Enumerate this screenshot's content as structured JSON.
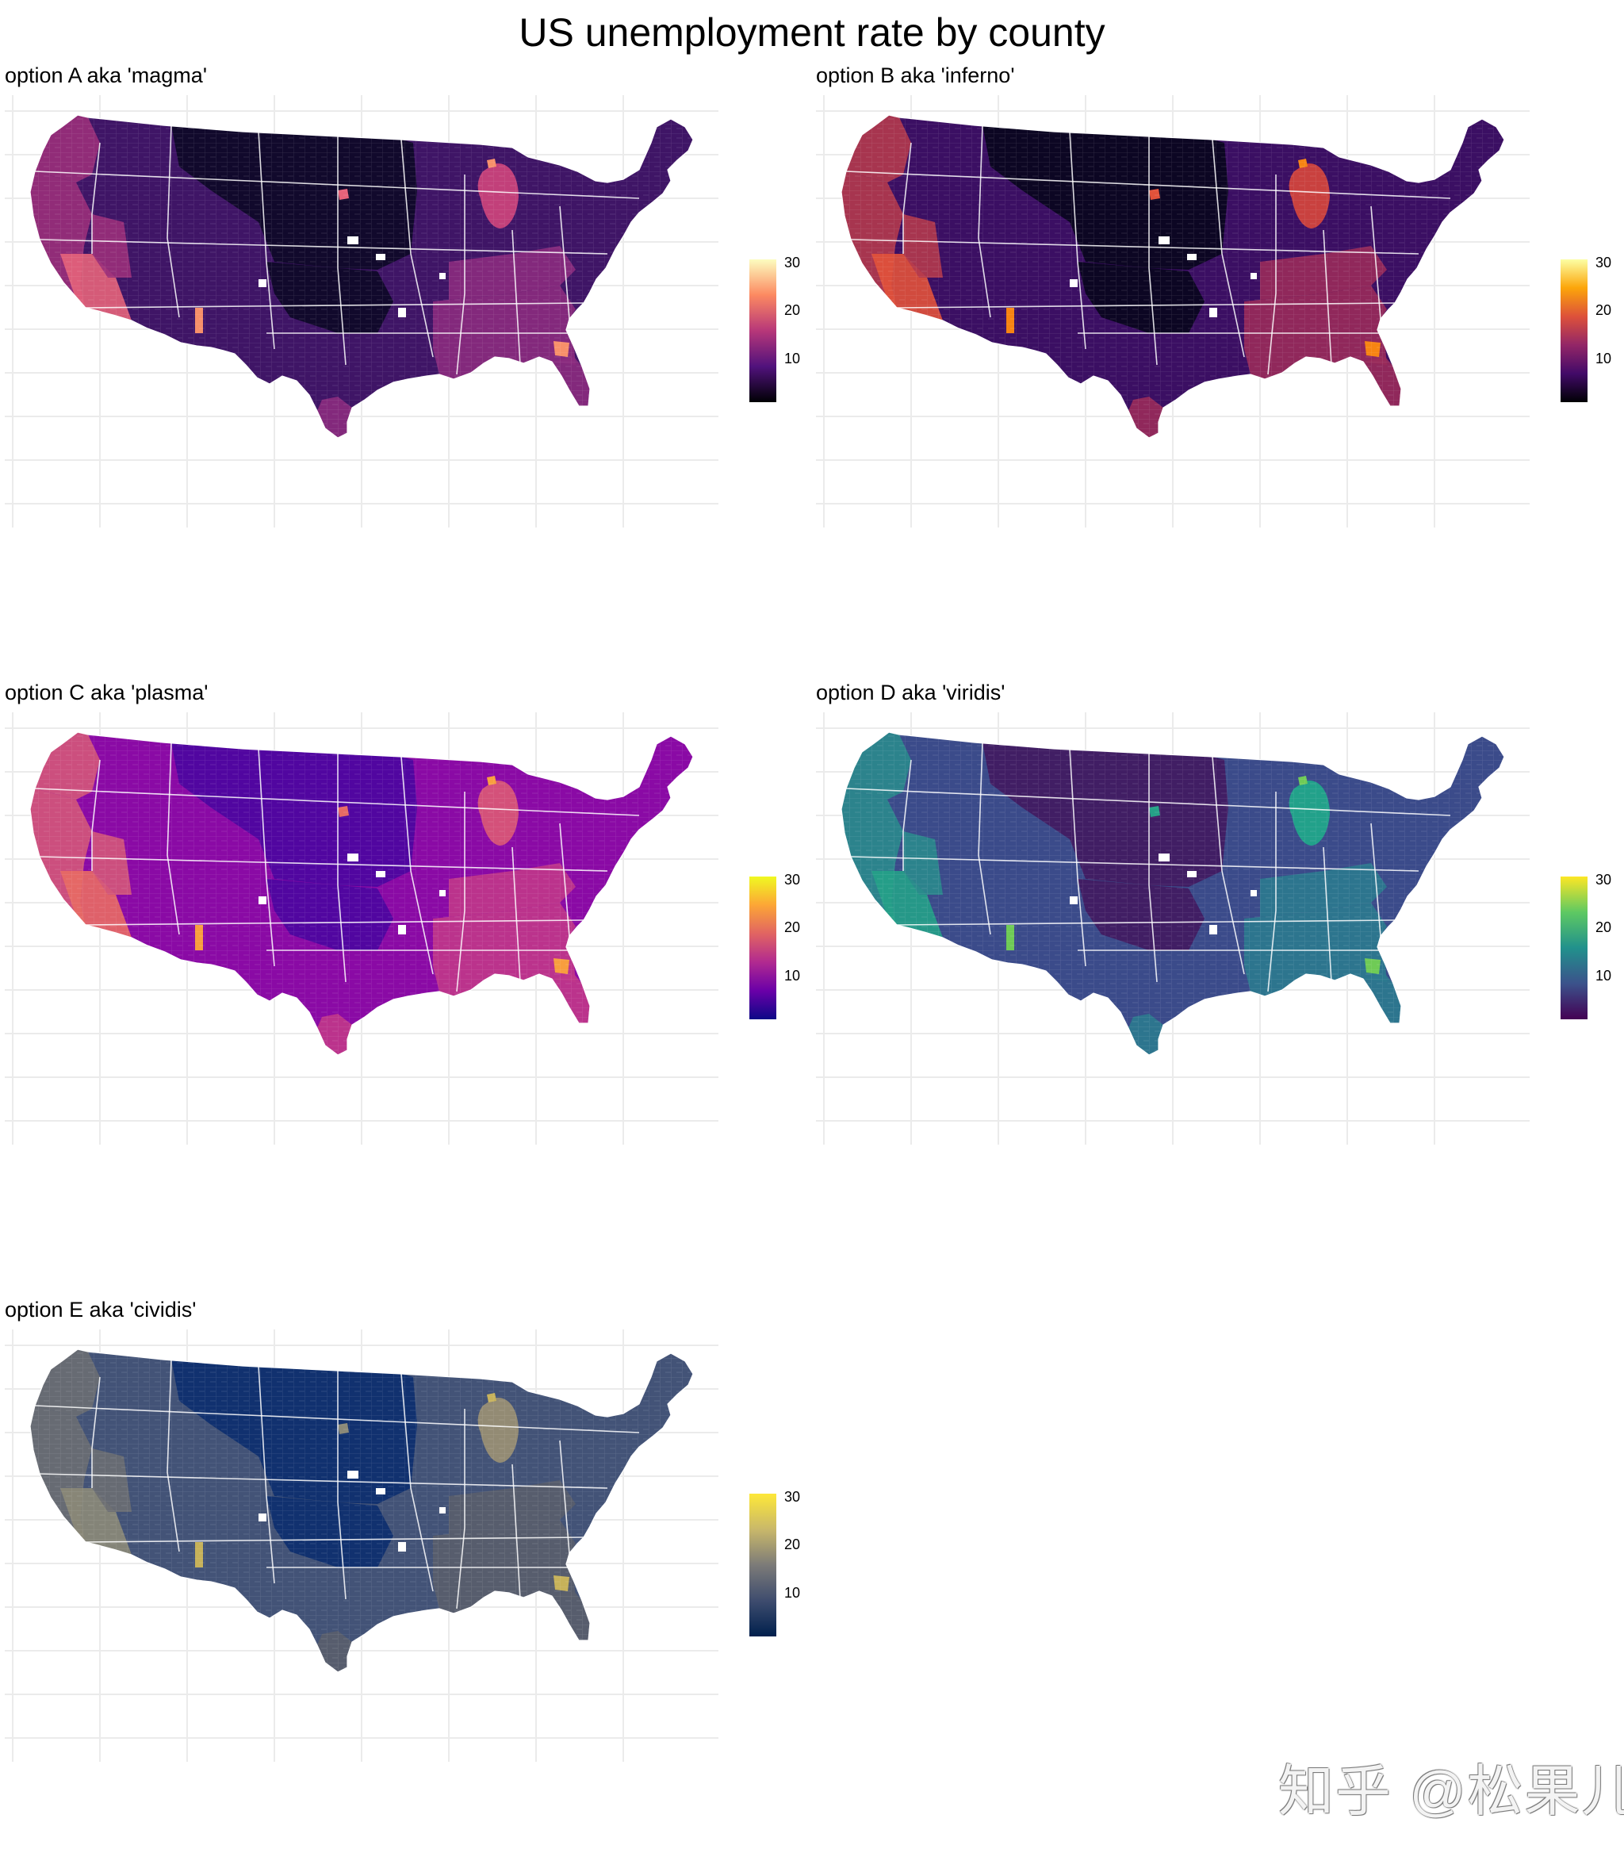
{
  "title": "US unemployment rate by county",
  "legend_ticks": [
    "10",
    "20",
    "30"
  ],
  "watermark": "知乎 @松果儿",
  "panels": [
    {
      "title": "option A aka 'magma'",
      "colors": {
        "base": "#3f1566",
        "north": "#0c0826",
        "west": "#9a2f7a",
        "southwest": "#e6637a",
        "southeast": "#8b2b7e",
        "hot": "#fdf0b2",
        "warm": "#f7906a",
        "michigan": "#c2407a"
      },
      "gradient": [
        "#fcfdbf",
        "#fc8961",
        "#b73779",
        "#51127c",
        "#000004"
      ]
    },
    {
      "title": "option B aka 'inferno'",
      "colors": {
        "base": "#3b0f63",
        "north": "#08051c",
        "west": "#b43a4d",
        "southwest": "#e2523a",
        "southeast": "#9a2b5a",
        "hot": "#fcd636",
        "warm": "#f78412",
        "michigan": "#c9413f"
      },
      "gradient": [
        "#fcffa4",
        "#fca50a",
        "#dd513a",
        "#932667",
        "#420a68",
        "#000004"
      ]
    },
    {
      "title": "option C aka 'plasma'",
      "colors": {
        "base": "#8a0aa5",
        "north": "#4a06a0",
        "west": "#d3567a",
        "southwest": "#e86a64",
        "southeast": "#c0378a",
        "hot": "#f3e92a",
        "warm": "#f89e3e",
        "michigan": "#d4517a"
      },
      "gradient": [
        "#f0f921",
        "#fca636",
        "#e16462",
        "#b12a90",
        "#6a00a8",
        "#0d0887"
      ]
    },
    {
      "title": "option D aka 'viridis'",
      "colors": {
        "base": "#3b4b8a",
        "north": "#43195f",
        "west": "#2b8a8c",
        "southwest": "#25a187",
        "southeast": "#2c7a8e",
        "hot": "#f2e61f",
        "warm": "#6fcb56",
        "michigan": "#22a18a"
      },
      "gradient": [
        "#fde725",
        "#5ec962",
        "#21918c",
        "#3b528b",
        "#440154"
      ]
    },
    {
      "title": "option E aka 'cividis'",
      "colors": {
        "base": "#435377",
        "north": "#0c2d6e",
        "west": "#6c6e72",
        "southwest": "#8c8a78",
        "southeast": "#5a5e6c",
        "hot": "#f5df3b",
        "warm": "#c7b25a",
        "michigan": "#938b74"
      },
      "gradient": [
        "#fee838",
        "#c9b86a",
        "#7c7b78",
        "#3e4c6e",
        "#00204d"
      ]
    }
  ]
}
